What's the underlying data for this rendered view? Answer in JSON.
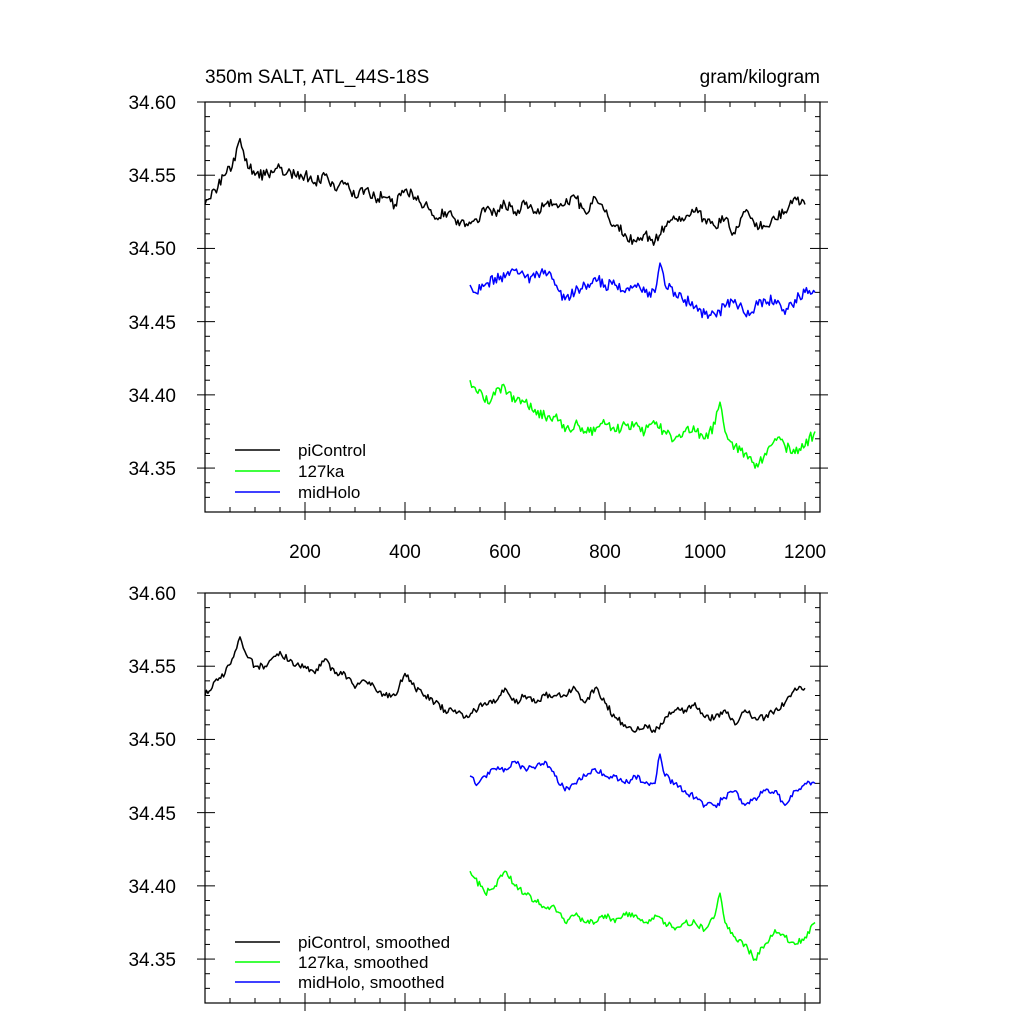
{
  "chart_data": [
    {
      "type": "line",
      "title": "350m SALT, ATL_44S-18S",
      "units": "gram/kilogram",
      "xlabel": "",
      "ylabel": "",
      "xlim": [
        0,
        1230
      ],
      "ylim": [
        34.32,
        34.6
      ],
      "xticks": [
        200,
        400,
        600,
        800,
        1000,
        1200
      ],
      "xtick_labels": [
        "200",
        "400",
        "600",
        "800",
        "1000",
        "1200"
      ],
      "yticks": [
        34.35,
        34.4,
        34.45,
        34.5,
        34.55,
        34.6
      ],
      "ytick_labels": [
        "34.35",
        "34.40",
        "34.45",
        "34.50",
        "34.55",
        "34.60"
      ],
      "legend_position": "bottom-left",
      "series": [
        {
          "name": "piControl",
          "color": "#000000",
          "x": [
            0,
            20,
            40,
            60,
            70,
            80,
            100,
            120,
            150,
            180,
            200,
            220,
            240,
            260,
            280,
            300,
            320,
            340,
            360,
            380,
            400,
            420,
            440,
            460,
            480,
            500,
            520,
            540,
            560,
            580,
            600,
            620,
            640,
            660,
            680,
            700,
            720,
            740,
            760,
            780,
            800,
            820,
            840,
            860,
            880,
            900,
            920,
            940,
            960,
            980,
            1000,
            1020,
            1040,
            1060,
            1080,
            1100,
            1120,
            1140,
            1160,
            1180,
            1200
          ],
          "y": [
            34.53,
            34.54,
            34.55,
            34.56,
            34.575,
            34.56,
            34.55,
            34.55,
            34.555,
            34.55,
            34.55,
            34.545,
            34.55,
            34.54,
            34.545,
            34.535,
            34.54,
            34.535,
            34.535,
            34.53,
            34.54,
            34.535,
            34.53,
            34.52,
            34.525,
            34.52,
            34.515,
            34.52,
            34.525,
            34.525,
            34.53,
            34.525,
            34.53,
            34.525,
            34.53,
            34.53,
            34.53,
            34.535,
            34.525,
            34.535,
            34.525,
            34.515,
            34.51,
            34.505,
            34.51,
            34.505,
            34.515,
            34.52,
            34.52,
            34.525,
            34.52,
            34.515,
            34.52,
            34.51,
            34.525,
            34.515,
            34.515,
            34.52,
            34.525,
            34.535,
            34.53
          ]
        },
        {
          "name": "127ka",
          "color": "#00ff00",
          "x": [
            530,
            540,
            560,
            580,
            600,
            620,
            640,
            660,
            680,
            700,
            720,
            740,
            760,
            780,
            800,
            820,
            840,
            860,
            880,
            900,
            920,
            940,
            960,
            980,
            1000,
            1020,
            1030,
            1040,
            1060,
            1080,
            1100,
            1120,
            1140,
            1160,
            1180,
            1200,
            1220
          ],
          "y": [
            34.41,
            34.405,
            34.395,
            34.4,
            34.405,
            34.395,
            34.395,
            34.39,
            34.385,
            34.385,
            34.375,
            34.38,
            34.375,
            34.375,
            34.38,
            34.375,
            34.38,
            34.38,
            34.375,
            34.38,
            34.375,
            34.37,
            34.375,
            34.375,
            34.37,
            34.38,
            34.395,
            34.375,
            34.365,
            34.36,
            34.35,
            34.36,
            34.37,
            34.365,
            34.36,
            34.365,
            34.375
          ]
        },
        {
          "name": "midHolo",
          "color": "#0000ff",
          "x": [
            530,
            540,
            560,
            580,
            600,
            620,
            640,
            660,
            680,
            700,
            720,
            740,
            760,
            780,
            800,
            820,
            840,
            860,
            880,
            900,
            910,
            920,
            940,
            960,
            980,
            1000,
            1020,
            1040,
            1060,
            1080,
            1100,
            1120,
            1140,
            1160,
            1180,
            1200,
            1220
          ],
          "y": [
            34.475,
            34.47,
            34.475,
            34.48,
            34.48,
            34.485,
            34.48,
            34.48,
            34.485,
            34.475,
            34.465,
            34.47,
            34.475,
            34.48,
            34.475,
            34.475,
            34.47,
            34.475,
            34.47,
            34.47,
            34.49,
            34.475,
            34.47,
            34.465,
            34.46,
            34.455,
            34.455,
            34.46,
            34.465,
            34.455,
            34.46,
            34.465,
            34.465,
            34.455,
            34.465,
            34.47,
            34.47
          ]
        }
      ]
    },
    {
      "type": "line",
      "title": "",
      "xlabel": "",
      "ylabel": "",
      "xlim": [
        0,
        1230
      ],
      "ylim": [
        34.32,
        34.6
      ],
      "xticks": [
        200,
        400,
        600,
        800,
        1000,
        1200
      ],
      "yticks": [
        34.35,
        34.4,
        34.45,
        34.5,
        34.55,
        34.6
      ],
      "ytick_labels": [
        "34.35",
        "34.40",
        "34.45",
        "34.50",
        "34.55",
        "34.60"
      ],
      "legend_position": "bottom-left",
      "series": [
        {
          "name": "piControl, smoothed",
          "color": "#000000",
          "x": [
            0,
            20,
            40,
            60,
            70,
            80,
            100,
            120,
            150,
            180,
            200,
            220,
            240,
            260,
            280,
            300,
            320,
            340,
            360,
            380,
            400,
            420,
            440,
            460,
            480,
            500,
            520,
            540,
            560,
            580,
            600,
            620,
            640,
            660,
            680,
            700,
            720,
            740,
            760,
            780,
            800,
            820,
            840,
            860,
            880,
            900,
            920,
            940,
            960,
            980,
            1000,
            1020,
            1040,
            1060,
            1080,
            1100,
            1120,
            1140,
            1160,
            1180,
            1200
          ],
          "y": [
            34.53,
            34.54,
            34.545,
            34.56,
            34.57,
            34.56,
            34.55,
            34.55,
            34.56,
            34.55,
            34.55,
            34.545,
            34.555,
            34.545,
            34.545,
            34.535,
            34.54,
            34.535,
            34.53,
            34.53,
            34.545,
            34.535,
            34.53,
            34.525,
            34.52,
            34.52,
            34.515,
            34.52,
            34.525,
            34.525,
            34.535,
            34.525,
            34.53,
            34.525,
            34.53,
            34.53,
            34.53,
            34.535,
            34.525,
            34.535,
            34.525,
            34.515,
            34.51,
            34.505,
            34.51,
            34.505,
            34.515,
            34.52,
            34.52,
            34.525,
            34.515,
            34.515,
            34.52,
            34.51,
            34.52,
            34.515,
            34.515,
            34.52,
            34.525,
            34.535,
            34.535
          ]
        },
        {
          "name": "127ka, smoothed",
          "color": "#00ff00",
          "x": [
            530,
            540,
            560,
            580,
            600,
            620,
            640,
            660,
            680,
            700,
            720,
            740,
            760,
            780,
            800,
            820,
            840,
            860,
            880,
            900,
            920,
            940,
            960,
            980,
            1000,
            1020,
            1030,
            1040,
            1060,
            1080,
            1100,
            1120,
            1140,
            1160,
            1180,
            1200,
            1220
          ],
          "y": [
            34.41,
            34.405,
            34.395,
            34.4,
            34.41,
            34.4,
            34.395,
            34.39,
            34.385,
            34.385,
            34.375,
            34.38,
            34.375,
            34.375,
            34.38,
            34.375,
            34.38,
            34.38,
            34.375,
            34.38,
            34.375,
            34.37,
            34.375,
            34.375,
            34.37,
            34.38,
            34.395,
            34.375,
            34.365,
            34.36,
            34.35,
            34.36,
            34.37,
            34.365,
            34.36,
            34.365,
            34.375
          ]
        },
        {
          "name": "midHolo, smoothed",
          "color": "#0000ff",
          "x": [
            530,
            540,
            560,
            580,
            600,
            620,
            640,
            660,
            680,
            700,
            720,
            740,
            760,
            780,
            800,
            820,
            840,
            860,
            880,
            900,
            910,
            920,
            940,
            960,
            980,
            1000,
            1020,
            1040,
            1060,
            1080,
            1100,
            1120,
            1140,
            1160,
            1180,
            1200,
            1220
          ],
          "y": [
            34.475,
            34.47,
            34.475,
            34.48,
            34.48,
            34.485,
            34.48,
            34.48,
            34.485,
            34.475,
            34.465,
            34.47,
            34.475,
            34.48,
            34.475,
            34.475,
            34.47,
            34.475,
            34.47,
            34.47,
            34.49,
            34.475,
            34.47,
            34.465,
            34.46,
            34.455,
            34.455,
            34.46,
            34.465,
            34.455,
            34.46,
            34.465,
            34.465,
            34.455,
            34.465,
            34.47,
            34.47
          ]
        }
      ]
    }
  ]
}
